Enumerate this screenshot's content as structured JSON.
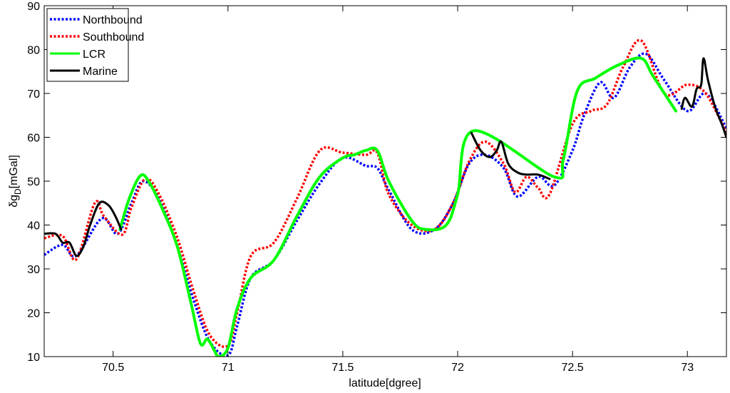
{
  "chart_data": {
    "type": "line",
    "xlabel": "latitude[dgree]",
    "ylabel_main": "δg",
    "ylabel_sub": "D",
    "ylabel_unit": "[mGal]",
    "xlim": [
      70.2,
      73.17
    ],
    "ylim": [
      10,
      90
    ],
    "xticks": [
      70.5,
      71,
      71.5,
      72,
      72.5,
      73
    ],
    "xtick_labels": [
      "70.5",
      "71",
      "71.5",
      "72",
      "72.5",
      "73"
    ],
    "yticks": [
      10,
      20,
      30,
      40,
      50,
      60,
      70,
      80,
      90
    ],
    "ytick_labels": [
      "10",
      "20",
      "30",
      "40",
      "50",
      "60",
      "70",
      "80",
      "90"
    ],
    "legend_position": "top-left",
    "series": [
      {
        "name": "Northbound",
        "color": "#0000ff",
        "style": "dotted",
        "x": [
          70.2,
          70.28,
          70.34,
          70.45,
          70.52,
          70.58,
          70.63,
          70.7,
          70.78,
          70.85,
          70.92,
          71.0,
          71.04,
          71.1,
          71.2,
          71.3,
          71.4,
          71.5,
          71.6,
          71.65,
          71.7,
          71.8,
          71.9,
          71.98,
          72.05,
          72.12,
          72.2,
          72.26,
          72.35,
          72.42,
          72.5,
          72.55,
          72.62,
          72.68,
          72.75,
          72.82,
          72.9,
          73.0,
          73.08,
          73.17
        ],
        "y": [
          33.2,
          35.5,
          33.0,
          41.5,
          38.0,
          45.0,
          50.0,
          46.0,
          35.0,
          23.0,
          13.5,
          10.3,
          17.0,
          28.0,
          32.0,
          41.0,
          49.5,
          55.3,
          53.5,
          53.0,
          48.0,
          39.0,
          39.0,
          45.0,
          54.0,
          56.0,
          53.0,
          46.5,
          51.0,
          49.0,
          57.0,
          65.0,
          72.5,
          69.0,
          76.0,
          79.0,
          73.0,
          66.0,
          70.0,
          62.0
        ]
      },
      {
        "name": "Southbound",
        "color": "#ff0000",
        "style": "dotted",
        "x": [
          70.2,
          70.28,
          70.34,
          70.42,
          70.46,
          70.54,
          70.58,
          70.64,
          70.7,
          70.78,
          70.85,
          70.92,
          71.0,
          71.04,
          71.1,
          71.2,
          71.3,
          71.4,
          71.5,
          71.6,
          71.65,
          71.7,
          71.8,
          71.9,
          71.98,
          72.05,
          72.12,
          72.2,
          72.25,
          72.3,
          72.35,
          72.4,
          72.5,
          72.58,
          72.65,
          72.72,
          72.8,
          72.9,
          73.0,
          73.08,
          73.17
        ],
        "y": [
          37.0,
          37.5,
          32.2,
          45.0,
          42.0,
          37.8,
          44.0,
          50.5,
          47.0,
          37.0,
          25.0,
          15.0,
          12.5,
          20.0,
          33.0,
          36.0,
          46.0,
          57.0,
          56.5,
          56.0,
          56.5,
          47.0,
          40.0,
          39.0,
          45.0,
          54.5,
          59.0,
          54.0,
          47.5,
          51.0,
          48.5,
          47.0,
          63.0,
          66.0,
          67.5,
          76.0,
          82.0,
          70.0,
          72.0,
          70.0,
          61.0
        ]
      },
      {
        "name": "LCR",
        "color": "#00ff00",
        "style": "solid",
        "x": [
          70.53,
          70.57,
          70.62,
          70.66,
          70.72,
          70.78,
          70.84,
          70.88,
          70.91,
          70.94,
          70.96,
          71.0,
          71.04,
          71.1,
          71.2,
          71.3,
          71.4,
          71.5,
          71.55,
          71.6,
          71.65,
          71.7,
          71.8,
          71.86,
          71.95,
          72.0,
          72.07,
          72.42,
          72.46,
          72.52,
          72.6,
          72.7,
          72.8,
          72.85,
          72.95
        ],
        "y": [
          39.0,
          46.0,
          51.3,
          49.5,
          43.0,
          35.0,
          22.0,
          13.0,
          14.0,
          11.5,
          10.0,
          12.0,
          21.0,
          28.0,
          32.0,
          42.0,
          51.0,
          55.3,
          56.0,
          57.0,
          57.0,
          50.0,
          41.0,
          39.0,
          40.0,
          47.0,
          61.5,
          51.0,
          55.0,
          70.5,
          73.5,
          76.5,
          78.0,
          74.0,
          66.0
        ]
      },
      {
        "name": "Marine",
        "color": "#000000",
        "style": "solid",
        "x": [
          70.2,
          70.25,
          70.28,
          70.31,
          70.34,
          70.37,
          70.4,
          70.44,
          70.48,
          70.51,
          70.535,
          72.06,
          72.1,
          72.14,
          72.17,
          72.19,
          72.22,
          72.26,
          72.3,
          72.35,
          72.4,
          72.975,
          72.99,
          73.02,
          73.04,
          73.06,
          73.07,
          73.09,
          73.12,
          73.15,
          73.17
        ],
        "y": [
          38.0,
          38.0,
          36.0,
          36.0,
          33.0,
          35.0,
          40.0,
          45.0,
          44.5,
          42.0,
          39.0,
          61.0,
          57.0,
          55.5,
          57.0,
          59.0,
          54.0,
          52.0,
          51.5,
          51.5,
          50.5,
          66.5,
          69.0,
          67.0,
          71.0,
          72.0,
          78.0,
          73.0,
          67.0,
          63.0,
          60.0
        ]
      }
    ]
  }
}
